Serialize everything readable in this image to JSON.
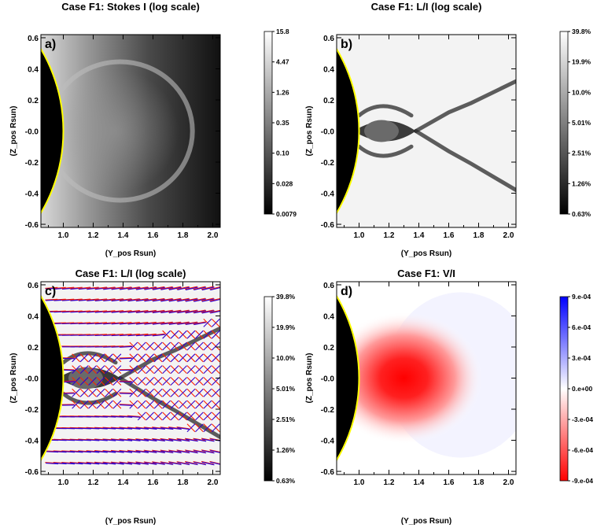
{
  "chart_data": [
    {
      "type": "heatmap",
      "panel_label": "a)",
      "title": "Case F1: Stokes I (log scale)",
      "xlabel": "(Y_pos Rsun)",
      "ylabel": "(Z_pos Rsun)",
      "xlim": [
        0.85,
        2.05
      ],
      "ylim": [
        -0.62,
        0.62
      ],
      "xticks": [
        "1.0",
        "1.2",
        "1.4",
        "1.6",
        "1.8",
        "2.0"
      ],
      "yticks": [
        "-0.6",
        "-0.4",
        "-0.2",
        "-0.0",
        "0.2",
        "0.4",
        "0.6"
      ],
      "colormap": "grayscale",
      "colorbar_ticks": [
        "15.8",
        "4.47",
        "1.26",
        "0.35",
        "0.10",
        "0.028",
        "0.0079"
      ],
      "limb_color": "#ffff00"
    },
    {
      "type": "heatmap",
      "panel_label": "b)",
      "title": "Case F1: L/I (log scale)",
      "xlabel": "(Y_pos Rsun)",
      "ylabel": "(Z_pos Rsun)",
      "xlim": [
        0.85,
        2.05
      ],
      "ylim": [
        -0.62,
        0.62
      ],
      "xticks": [
        "1.0",
        "1.2",
        "1.4",
        "1.6",
        "1.8",
        "2.0"
      ],
      "yticks": [
        "-0.6",
        "-0.4",
        "-0.2",
        "-0.0",
        "0.2",
        "0.4",
        "0.6"
      ],
      "colormap": "grayscale",
      "colorbar_ticks": [
        "39.8%",
        "19.9%",
        "10.0%",
        "5.01%",
        "2.51%",
        "1.26%",
        "0.63%"
      ],
      "limb_color": "#ffff00"
    },
    {
      "type": "heatmap",
      "panel_label": "c)",
      "title": "Case F1: L/I (log scale)",
      "xlabel": "(Y_pos Rsun)",
      "ylabel": "(Z_pos Rsun)",
      "xlim": [
        0.85,
        2.05
      ],
      "ylim": [
        -0.62,
        0.62
      ],
      "xticks": [
        "1.0",
        "1.2",
        "1.4",
        "1.6",
        "1.8",
        "2.0"
      ],
      "yticks": [
        "-0.6",
        "-0.4",
        "-0.2",
        "-0.0",
        "0.2",
        "0.4",
        "0.6"
      ],
      "colormap": "grayscale",
      "colorbar_ticks": [
        "39.8%",
        "19.9%",
        "10.0%",
        "5.01%",
        "2.51%",
        "1.26%",
        "0.63%"
      ],
      "overlay": "polarization direction vectors",
      "vector_colors": [
        "#3300cc",
        "#ff2200"
      ],
      "limb_color": "#ffff00"
    },
    {
      "type": "heatmap",
      "panel_label": "d)",
      "title": "Case F1: V/I",
      "xlabel": "(Y_pos Rsun)",
      "ylabel": "(Z_pos Rsun)",
      "xlim": [
        0.85,
        2.05
      ],
      "ylim": [
        -0.62,
        0.62
      ],
      "xticks": [
        "1.0",
        "1.2",
        "1.4",
        "1.6",
        "1.8",
        "2.0"
      ],
      "yticks": [
        "-0.6",
        "-0.4",
        "-0.2",
        "-0.0",
        "0.2",
        "0.4",
        "0.6"
      ],
      "colormap": "red-white-blue",
      "colorbar_ticks": [
        "9.e-04",
        "6.e-04",
        "3.e-04",
        "0.e+00",
        "-3.e-04",
        "-6.e-04",
        "-9.e-04"
      ],
      "limb_color": "#ffff00"
    }
  ]
}
